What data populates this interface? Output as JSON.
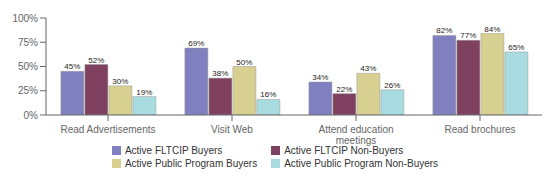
{
  "chart_data": {
    "type": "bar",
    "categories": [
      "Read Advertisements",
      "Visit Web",
      "Attend education\nmeetings",
      "Read brochures"
    ],
    "series": [
      {
        "name": "Active FLTCIP Buyers",
        "color": "#8080c0",
        "values": [
          45,
          69,
          34,
          82
        ],
        "value_labels": [
          "45%",
          "69%",
          "34%",
          "82%"
        ]
      },
      {
        "name": "Active FLTCIP Non-Buyers",
        "color": "#804060",
        "values": [
          52,
          38,
          22,
          77
        ],
        "value_labels": [
          "52%",
          "38%",
          "22%",
          "77%"
        ]
      },
      {
        "name": "Active Public Program Buyers",
        "color": "#d8d090",
        "values": [
          30,
          50,
          43,
          84
        ],
        "value_labels": [
          "30%",
          "50%",
          "43%",
          "84%"
        ]
      },
      {
        "name": "Active Public Program Non-Buyers",
        "color": "#a8dce0",
        "values": [
          19,
          16,
          26,
          65
        ],
        "value_labels": [
          "19%",
          "16%",
          "26%",
          "65%"
        ]
      }
    ],
    "ylim": [
      0,
      100
    ],
    "yticks": [
      {
        "value": 0,
        "label": "0%"
      },
      {
        "value": 25,
        "label": "25%"
      },
      {
        "value": 50,
        "label": "50%"
      },
      {
        "value": 75,
        "label": "75%"
      },
      {
        "value": 100,
        "label": "100%"
      }
    ],
    "grid": false,
    "legend": "bottom",
    "data_labels": true
  }
}
